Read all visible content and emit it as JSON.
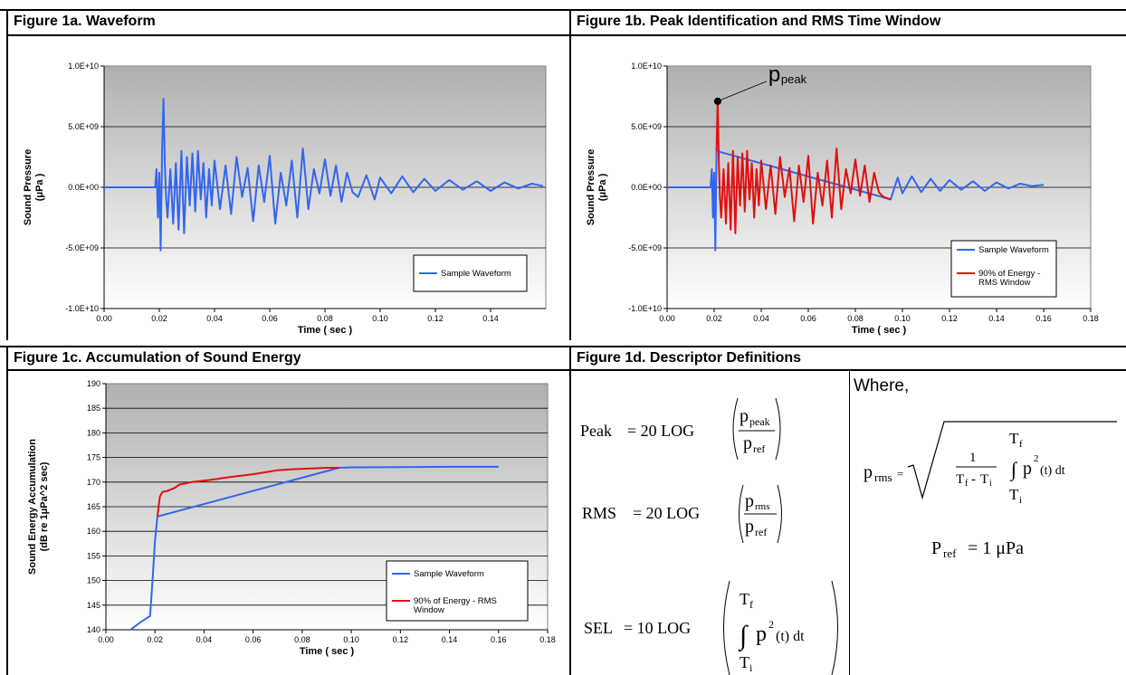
{
  "fig_a": {
    "title": "Figure 1a. Waveform"
  },
  "fig_b": {
    "title": "Figure 1b. Peak Identification and RMS Time Window",
    "peak_label_p": "p",
    "peak_label_sub": "peak"
  },
  "fig_c": {
    "title": "Figure 1c. Accumulation of Sound Energy"
  },
  "fig_d": {
    "title": "Figure 1d. Descriptor Definitions",
    "where": "Where,",
    "peak_lhs": "Peak",
    "rms_lhs": "RMS",
    "sel_lhs": "SEL",
    "eq20log": "= 20 LOG",
    "eq10log": "= 10 LOG",
    "p": "p",
    "sub_peak": "peak",
    "sub_rms": "rms",
    "sub_ref": "ref",
    "T": "T",
    "sub_f": "f",
    "sub_i": "i",
    "integrand": "p",
    "sq": "2",
    "dt": "(t) dt",
    "one": "1",
    "eq": "=",
    "pref_P": "P",
    "pref_val": "=  1 μPa"
  },
  "colors": {
    "blue": "#3366ee",
    "red": "#e01010",
    "plot_top": "#b0b0b0",
    "plot_bottom": "#ffffff"
  },
  "chart_data": [
    {
      "type": "line",
      "id": "fig1a",
      "xlabel": "Time ( sec )",
      "ylabel": "Sound Pressure (μPa )",
      "xlim": [
        0,
        0.16
      ],
      "ylim": [
        -10000000000.0,
        10000000000.0
      ],
      "xticks": [
        "0.00",
        "0.02",
        "0.04",
        "0.06",
        "0.08",
        "0.10",
        "0.12",
        "0.14"
      ],
      "yticks": [
        "1.0E+10",
        "5.0E+09",
        "0.0E+00",
        "-5.0E+09",
        "-1.0E+10"
      ],
      "legend": "bottom-right",
      "grid": true,
      "series": [
        {
          "name": "Sample Waveform",
          "color": "#3366ee",
          "x": [
            0,
            0.0185,
            0.019,
            0.0195,
            0.02,
            0.0205,
            0.021,
            0.0215,
            0.022,
            0.0225,
            0.023,
            0.024,
            0.025,
            0.026,
            0.027,
            0.028,
            0.029,
            0.03,
            0.031,
            0.032,
            0.033,
            0.034,
            0.035,
            0.036,
            0.037,
            0.038,
            0.039,
            0.04,
            0.042,
            0.044,
            0.046,
            0.048,
            0.05,
            0.052,
            0.054,
            0.056,
            0.058,
            0.06,
            0.062,
            0.064,
            0.066,
            0.068,
            0.07,
            0.072,
            0.074,
            0.076,
            0.078,
            0.08,
            0.082,
            0.084,
            0.086,
            0.088,
            0.09,
            0.092,
            0.095,
            0.098,
            0.1,
            0.104,
            0.108,
            0.112,
            0.116,
            0.12,
            0.125,
            0.13,
            0.135,
            0.14,
            0.145,
            0.15,
            0.155,
            0.159
          ],
          "y": [
            0,
            0,
            1500000000.0,
            -2500000000.0,
            1200000000.0,
            -5200000000.0,
            3000000000.0,
            7300000000.0,
            2000000000.0,
            -1000000000.0,
            -2500000000.0,
            1500000000.0,
            -3000000000.0,
            2000000000.0,
            -3500000000.0,
            3000000000.0,
            -3800000000.0,
            2500000000.0,
            -1500000000.0,
            2800000000.0,
            -2000000000.0,
            3000000000.0,
            -1000000000.0,
            2000000000.0,
            -2500000000.0,
            1500000000.0,
            -1500000000.0,
            2200000000.0,
            -1800000000.0,
            1800000000.0,
            -2200000000.0,
            2500000000.0,
            -800000000.0,
            1600000000.0,
            -2800000000.0,
            1800000000.0,
            -1200000000.0,
            2600000000.0,
            -3000000000.0,
            1200000000.0,
            -1500000000.0,
            2200000000.0,
            -2500000000.0,
            3200000000.0,
            -1800000000.0,
            1500000000.0,
            -500000000.0,
            2300000000.0,
            -700000000.0,
            1800000000.0,
            -1200000000.0,
            1200000000.0,
            -400000000.0,
            -800000000.0,
            1000000000.0,
            -1000000000.0,
            800000000.0,
            -500000000.0,
            900000000.0,
            -400000000.0,
            700000000.0,
            -300000000.0,
            600000000.0,
            -200000000.0,
            500000000.0,
            -300000000.0,
            400000000.0,
            -100000000.0,
            300000000.0,
            100000000.0
          ]
        }
      ]
    },
    {
      "type": "line",
      "id": "fig1b",
      "xlabel": "Time ( sec )",
      "ylabel": "Sound Pressure (μPa )",
      "xlim": [
        0,
        0.18
      ],
      "ylim": [
        -10000000000.0,
        10000000000.0
      ],
      "xticks": [
        "0.00",
        "0.02",
        "0.04",
        "0.06",
        "0.08",
        "0.10",
        "0.12",
        "0.14",
        "0.16",
        "0.18"
      ],
      "yticks": [
        "1.0E+10",
        "5.0E+09",
        "0.0E+00",
        "-5.0E+09",
        "-1.0E+10"
      ],
      "legend": "bottom-right",
      "grid": true,
      "annotation": {
        "x": 0.0215,
        "y": 7100000000.0
      },
      "series": [
        {
          "name": "Sample Waveform",
          "color": "#3366ee",
          "x": [
            0,
            0.0185,
            0.019,
            0.0195,
            0.02,
            0.0205,
            0.021,
            0.095,
            0.098,
            0.1,
            0.104,
            0.108,
            0.112,
            0.116,
            0.12,
            0.125,
            0.13,
            0.135,
            0.14,
            0.145,
            0.15,
            0.155,
            0.16
          ],
          "y": [
            0,
            0,
            1500000000.0,
            -2500000000.0,
            1200000000.0,
            -5200000000.0,
            3000000000.0,
            -1000000000.0,
            800000000.0,
            -500000000.0,
            900000000.0,
            -400000000.0,
            700000000.0,
            -300000000.0,
            600000000.0,
            -200000000.0,
            500000000.0,
            -300000000.0,
            400000000.0,
            -100000000.0,
            300000000.0,
            100000000.0,
            200000000.0
          ]
        },
        {
          "name": "90% of Energy - RMS Window",
          "color": "#e01010",
          "x": [
            0.021,
            0.0215,
            0.022,
            0.0225,
            0.023,
            0.024,
            0.025,
            0.026,
            0.027,
            0.028,
            0.029,
            0.03,
            0.031,
            0.032,
            0.033,
            0.034,
            0.035,
            0.036,
            0.037,
            0.038,
            0.039,
            0.04,
            0.042,
            0.044,
            0.046,
            0.048,
            0.05,
            0.052,
            0.054,
            0.056,
            0.058,
            0.06,
            0.062,
            0.064,
            0.066,
            0.068,
            0.07,
            0.072,
            0.074,
            0.076,
            0.078,
            0.08,
            0.082,
            0.084,
            0.086,
            0.088,
            0.09,
            0.092,
            0.095
          ],
          "y": [
            3000000000.0,
            7300000000.0,
            2000000000.0,
            -1000000000.0,
            -2500000000.0,
            1500000000.0,
            -3000000000.0,
            2000000000.0,
            -3500000000.0,
            3000000000.0,
            -3800000000.0,
            2500000000.0,
            -1500000000.0,
            2800000000.0,
            -2000000000.0,
            3000000000.0,
            -1000000000.0,
            2000000000.0,
            -2500000000.0,
            1500000000.0,
            -1500000000.0,
            2200000000.0,
            -1800000000.0,
            1800000000.0,
            -2200000000.0,
            2500000000.0,
            -800000000.0,
            1600000000.0,
            -2800000000.0,
            1800000000.0,
            -1200000000.0,
            2600000000.0,
            -3000000000.0,
            1200000000.0,
            -1500000000.0,
            2200000000.0,
            -2500000000.0,
            3200000000.0,
            -1800000000.0,
            1500000000.0,
            -500000000.0,
            2300000000.0,
            -700000000.0,
            1800000000.0,
            -1200000000.0,
            1200000000.0,
            -400000000.0,
            -800000000.0,
            -1000000000.0
          ]
        }
      ]
    },
    {
      "type": "line",
      "id": "fig1c",
      "xlabel": "Time ( sec )",
      "ylabel": "Sound Energy Accumulation (dB re 1μPa^2 sec)",
      "xlim": [
        0,
        0.18
      ],
      "ylim": [
        140,
        190
      ],
      "xticks": [
        "0.00",
        "0.02",
        "0.04",
        "0.06",
        "0.08",
        "0.10",
        "0.12",
        "0.14",
        "0.16",
        "0.18"
      ],
      "yticks": [
        "190",
        "185",
        "180",
        "175",
        "170",
        "165",
        "160",
        "155",
        "150",
        "145",
        "140"
      ],
      "legend": "bottom-right",
      "grid": true,
      "series": [
        {
          "name": "Sample Waveform",
          "color": "#3366ee",
          "x": [
            0.01,
            0.014,
            0.018,
            0.019,
            0.02,
            0.021,
            0.095,
            0.1,
            0.12,
            0.14,
            0.16
          ],
          "y": [
            140,
            141.5,
            142.8,
            150,
            158,
            163,
            172.9,
            173,
            173.05,
            173.1,
            173.1
          ]
        },
        {
          "name": "90% of Energy - RMS Window",
          "color": "#e01010",
          "x": [
            0.021,
            0.022,
            0.023,
            0.025,
            0.028,
            0.03,
            0.035,
            0.04,
            0.045,
            0.05,
            0.055,
            0.06,
            0.065,
            0.07,
            0.075,
            0.08,
            0.085,
            0.09,
            0.095
          ],
          "y": [
            163,
            167,
            168,
            168.2,
            168.8,
            169.5,
            170,
            170.3,
            170.6,
            171,
            171.3,
            171.6,
            172,
            172.4,
            172.6,
            172.7,
            172.8,
            172.9,
            172.9
          ]
        }
      ]
    }
  ]
}
